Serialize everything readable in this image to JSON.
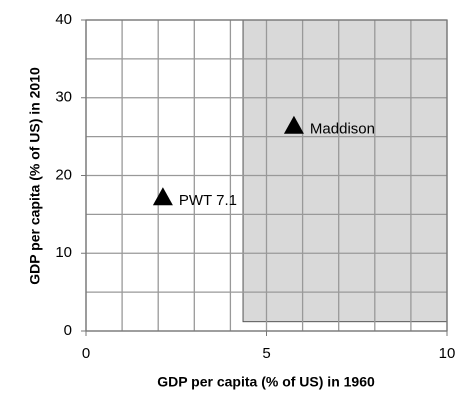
{
  "chart_data": {
    "type": "scatter",
    "x_label": "GDP per capita (% of US) in 1960",
    "y_label": "GDP per capita (% of US) in 2010",
    "xlim": [
      0,
      10
    ],
    "ylim": [
      0,
      40
    ],
    "xticks": [
      0,
      5,
      10
    ],
    "yticks": [
      0,
      10,
      20,
      30,
      40
    ],
    "xgrid": [
      0,
      1,
      2,
      3,
      4,
      5,
      6,
      7,
      8,
      9,
      10
    ],
    "ygrid": [
      0,
      5,
      10,
      15,
      20,
      25,
      30,
      35,
      40
    ],
    "shaded_region": {
      "x": [
        4.35,
        10
      ],
      "y": [
        1.2,
        40
      ],
      "color": "#d9d9d9"
    },
    "color": "#000000",
    "points": [
      {
        "label": "PWT 7.1",
        "x": 2.13,
        "y": 17.2
      },
      {
        "label": "Maddison",
        "x": 5.76,
        "y": 26.4
      }
    ]
  }
}
